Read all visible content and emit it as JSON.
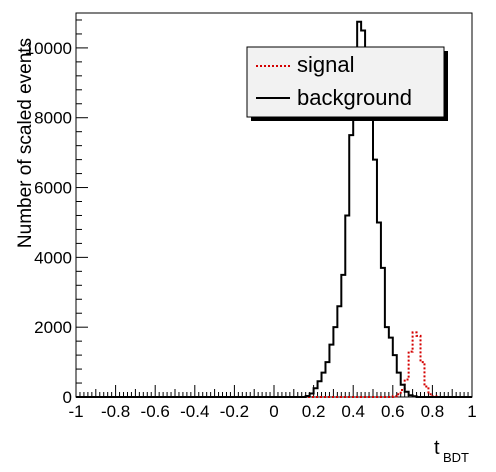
{
  "chart_data": {
    "type": "histogram",
    "xlabel": "t",
    "xlabel_sub": "BDT",
    "ylabel": "Number of scaled events",
    "xlim": [
      -1,
      1
    ],
    "ylim": [
      0,
      11000
    ],
    "grid": false,
    "legend_position": "top-right",
    "x_tick_labels": [
      "-1",
      "-0.8",
      "-0.6",
      "-0.4",
      "-0.2",
      "0",
      "0.2",
      "0.4",
      "0.6",
      "0.8",
      "1"
    ],
    "y_tick_labels": [
      "0",
      "2000",
      "4000",
      "6000",
      "8000",
      "10000"
    ],
    "bins": {
      "start": -1,
      "width": 0.02
    },
    "series": [
      {
        "name": "signal",
        "style": "dotted",
        "color": "#d40000",
        "bin_values": [
          0,
          0,
          0,
          0,
          0,
          0,
          0,
          0,
          0,
          0,
          0,
          0,
          0,
          0,
          0,
          0,
          0,
          0,
          0,
          0,
          0,
          0,
          0,
          0,
          0,
          0,
          0,
          0,
          0,
          0,
          0,
          0,
          0,
          0,
          0,
          0,
          0,
          0,
          0,
          0,
          0,
          0,
          0,
          0,
          0,
          0,
          0,
          0,
          0,
          0,
          0,
          0,
          0,
          0,
          0,
          0,
          0,
          0,
          0,
          0,
          0,
          0,
          0,
          0,
          0,
          0,
          0,
          0,
          0,
          0,
          0,
          0,
          0,
          0,
          0,
          0,
          0,
          0,
          0,
          0,
          20,
          80,
          200,
          500,
          1300,
          1850,
          1750,
          1000,
          300,
          80,
          20,
          0,
          0,
          0,
          0,
          0,
          0,
          0,
          0,
          0
        ]
      },
      {
        "name": "background",
        "style": "solid",
        "color": "#000000",
        "bin_values": [
          0,
          0,
          0,
          0,
          0,
          0,
          0,
          0,
          0,
          0,
          0,
          0,
          0,
          0,
          0,
          0,
          0,
          0,
          0,
          0,
          0,
          0,
          0,
          0,
          0,
          0,
          0,
          0,
          0,
          0,
          0,
          0,
          0,
          0,
          0,
          0,
          0,
          0,
          0,
          0,
          0,
          0,
          0,
          0,
          0,
          0,
          0,
          0,
          0,
          0,
          0,
          0,
          0,
          0,
          0,
          0,
          0,
          0,
          30,
          100,
          250,
          450,
          700,
          1000,
          1500,
          2000,
          2600,
          3500,
          5200,
          7500,
          9500,
          10750,
          10500,
          9200,
          8200,
          6800,
          5000,
          3700,
          2000,
          1700,
          1200,
          700,
          350,
          150,
          50,
          20,
          0,
          0,
          0,
          0,
          0,
          0,
          0,
          0,
          0,
          0,
          0,
          0,
          0,
          0
        ]
      }
    ]
  }
}
